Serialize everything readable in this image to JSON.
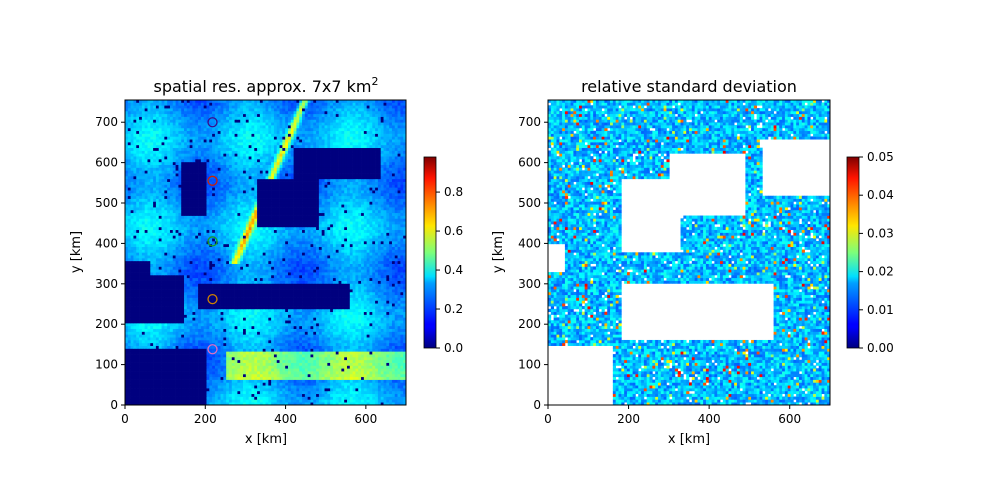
{
  "chart_data": [
    {
      "type": "heatmap",
      "title": "spatial res. approx. 7x7 km",
      "title_superscript": "2",
      "xlabel": "x [km]",
      "ylabel": "y [km]",
      "xlim": [
        0,
        700
      ],
      "ylim": [
        0,
        755
      ],
      "xticks": [
        0,
        200,
        400,
        600
      ],
      "yticks": [
        0,
        100,
        200,
        300,
        400,
        500,
        600,
        700
      ],
      "colormap": "jet",
      "colorbar": {
        "min": 0.0,
        "max": 0.98,
        "ticks": [
          "0.0",
          "0.2",
          "0.4",
          "0.6",
          "0.8"
        ]
      },
      "grid": false,
      "markers": [
        {
          "x": 218,
          "y": 700,
          "edge_color": "#3b0a8c"
        },
        {
          "x": 218,
          "y": 555,
          "edge_color": "#cc2200"
        },
        {
          "x": 218,
          "y": 405,
          "edge_color": "#1aa11a"
        },
        {
          "x": 218,
          "y": 262,
          "edge_color": "#d08000"
        },
        {
          "x": 218,
          "y": 138,
          "edge_color": "#e070c0"
        }
      ]
    },
    {
      "type": "heatmap",
      "title": "relative standard deviation",
      "xlabel": "x [km]",
      "ylabel": "y [km]",
      "xlim": [
        0,
        700
      ],
      "ylim": [
        0,
        755
      ],
      "xticks": [
        0,
        200,
        400,
        600
      ],
      "yticks": [
        0,
        100,
        200,
        300,
        400,
        500,
        600,
        700
      ],
      "colormap": "jet",
      "colorbar": {
        "min": 0.0,
        "max": 0.05,
        "ticks": [
          "0.00",
          "0.01",
          "0.02",
          "0.03",
          "0.04",
          "0.05"
        ]
      },
      "grid": false
    }
  ]
}
